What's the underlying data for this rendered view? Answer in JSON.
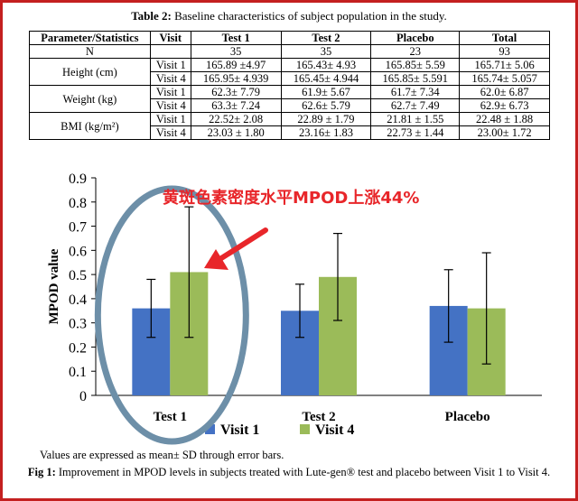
{
  "table": {
    "title_label": "Table 2:",
    "title_text": " Baseline characteristics of subject population in the study.",
    "headers": [
      "Parameter/Statistics",
      "Visit",
      "Test 1",
      "Test 2",
      "Placebo",
      "Total"
    ],
    "n_row": {
      "label": "N",
      "values": [
        "35",
        "35",
        "23",
        "93"
      ]
    },
    "groups": [
      {
        "param": "Height (cm)",
        "rows": [
          {
            "visit": "Visit  1",
            "values": [
              "165.89 ±4.97",
              "165.43± 4.93",
              "165.85± 5.59",
              "165.71± 5.06"
            ]
          },
          {
            "visit": "Visit  4",
            "values": [
              "165.95± 4.939",
              "165.45± 4.944",
              "165.85± 5.591",
              "165.74± 5.057"
            ]
          }
        ]
      },
      {
        "param": "Weight (kg)",
        "rows": [
          {
            "visit": "Visit  1",
            "values": [
              "62.3± 7.79",
              "61.9± 5.67",
              "61.7± 7.34",
              "62.0± 6.87"
            ]
          },
          {
            "visit": "Visit  4",
            "values": [
              "63.3± 7.24",
              "62.6± 5.79",
              "62.7± 7.49",
              "62.9± 6.73"
            ]
          }
        ]
      },
      {
        "param": "BMI (kg/m²)",
        "rows": [
          {
            "visit": "Visit  1",
            "values": [
              "22.52± 2.08",
              "22.89 ± 1.79",
              "21.81 ± 1.55",
              "22.48 ± 1.88"
            ]
          },
          {
            "visit": "Visit  4",
            "values": [
              "23.03 ± 1.80",
              "23.16± 1.83",
              "22.73 ± 1.44",
              "23.00± 1.72"
            ]
          }
        ]
      }
    ]
  },
  "chart_data": {
    "type": "bar",
    "categories": [
      "Test 1",
      "Test 2",
      "Placebo"
    ],
    "series": [
      {
        "name": "Visit 1",
        "color": "#4472c4",
        "values": [
          0.36,
          0.35,
          0.37
        ],
        "err": [
          0.12,
          0.11,
          0.15
        ]
      },
      {
        "name": "Visit 4",
        "color": "#9bbb59",
        "values": [
          0.51,
          0.49,
          0.36
        ],
        "err": [
          0.27,
          0.18,
          0.23
        ]
      }
    ],
    "ylabel": "MPOD value",
    "ylim": [
      0,
      0.9
    ],
    "yticks": [
      "0",
      "0.1",
      "0.2",
      "0.3",
      "0.4",
      "0.5",
      "0.6",
      "0.7",
      "0.8",
      "0.9"
    ],
    "legend_position": "bottom",
    "annotation": {
      "text": "黄斑色素密度水平MPOD上涨44%",
      "color": "#e8262a",
      "ellipse_color": "#6d8fa8"
    }
  },
  "note": "Values are expressed as mean± SD through error bars.",
  "caption": {
    "label": "Fig 1:",
    "text": " Improvement in MPOD levels in subjects treated with Lute-gen® test and placebo between Visit 1 to Visit 4."
  }
}
